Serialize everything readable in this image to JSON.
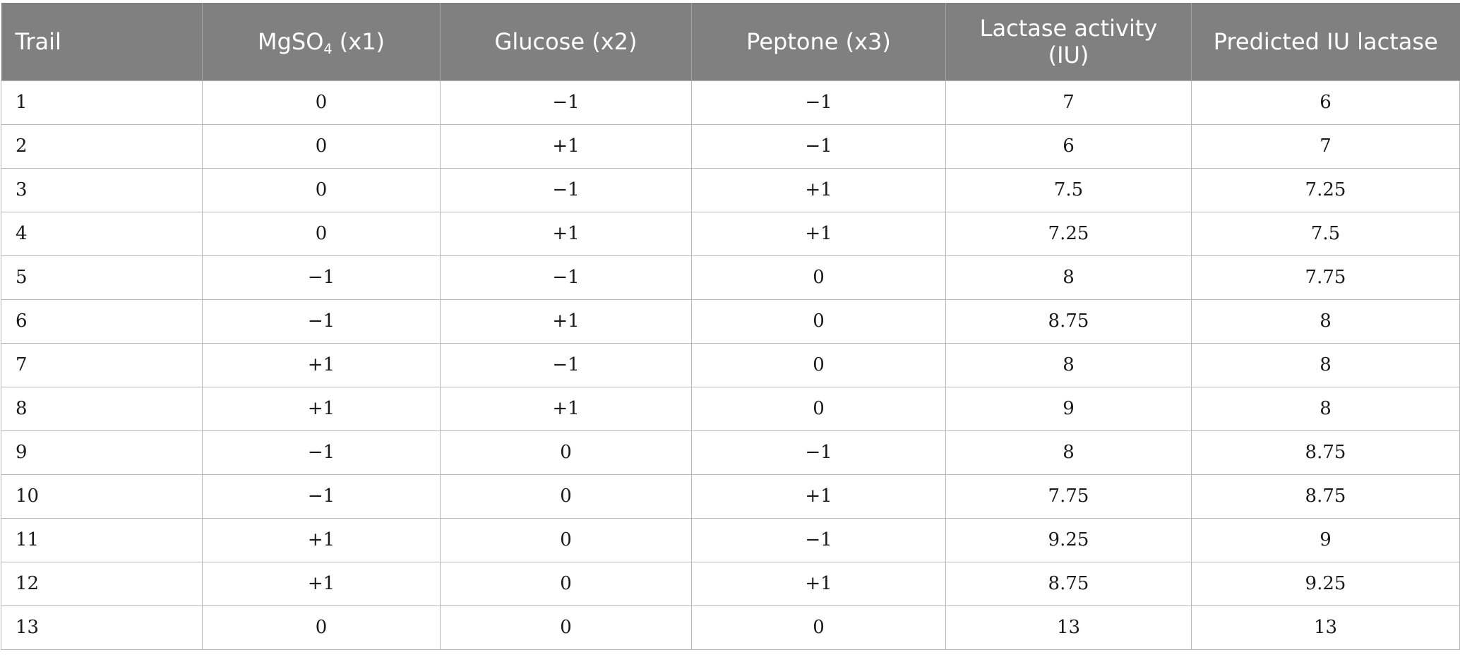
{
  "table": {
    "headers": {
      "trail": "Trail",
      "mgso4_base": "MgSO",
      "mgso4_sub": "4",
      "mgso4_suffix": " (x1)",
      "glucose": "Glucose (x2)",
      "peptone": "Peptone (x3)",
      "lactase_activity": "Lactase activity (IU)",
      "predicted": "Predicted IU lactase"
    },
    "rows": [
      [
        "1",
        "0",
        "−1",
        "−1",
        "7",
        "6"
      ],
      [
        "2",
        "0",
        "+1",
        "−1",
        "6",
        "7"
      ],
      [
        "3",
        "0",
        "−1",
        "+1",
        "7.5",
        "7.25"
      ],
      [
        "4",
        "0",
        "+1",
        "+1",
        "7.25",
        "7.5"
      ],
      [
        "5",
        "−1",
        "−1",
        "0",
        "8",
        "7.75"
      ],
      [
        "6",
        "−1",
        "+1",
        "0",
        "8.75",
        "8"
      ],
      [
        "7",
        "+1",
        "−1",
        "0",
        "8",
        "8"
      ],
      [
        "8",
        "+1",
        "+1",
        "0",
        "9",
        "8"
      ],
      [
        "9",
        "−1",
        "0",
        "−1",
        "8",
        "8.75"
      ],
      [
        "10",
        "−1",
        "0",
        "+1",
        "7.75",
        "8.75"
      ],
      [
        "11",
        "+1",
        "0",
        "−1",
        "9.25",
        "9"
      ],
      [
        "12",
        "+1",
        "0",
        "+1",
        "8.75",
        "9.25"
      ],
      [
        "13",
        "0",
        "0",
        "0",
        "13",
        "13"
      ]
    ]
  }
}
